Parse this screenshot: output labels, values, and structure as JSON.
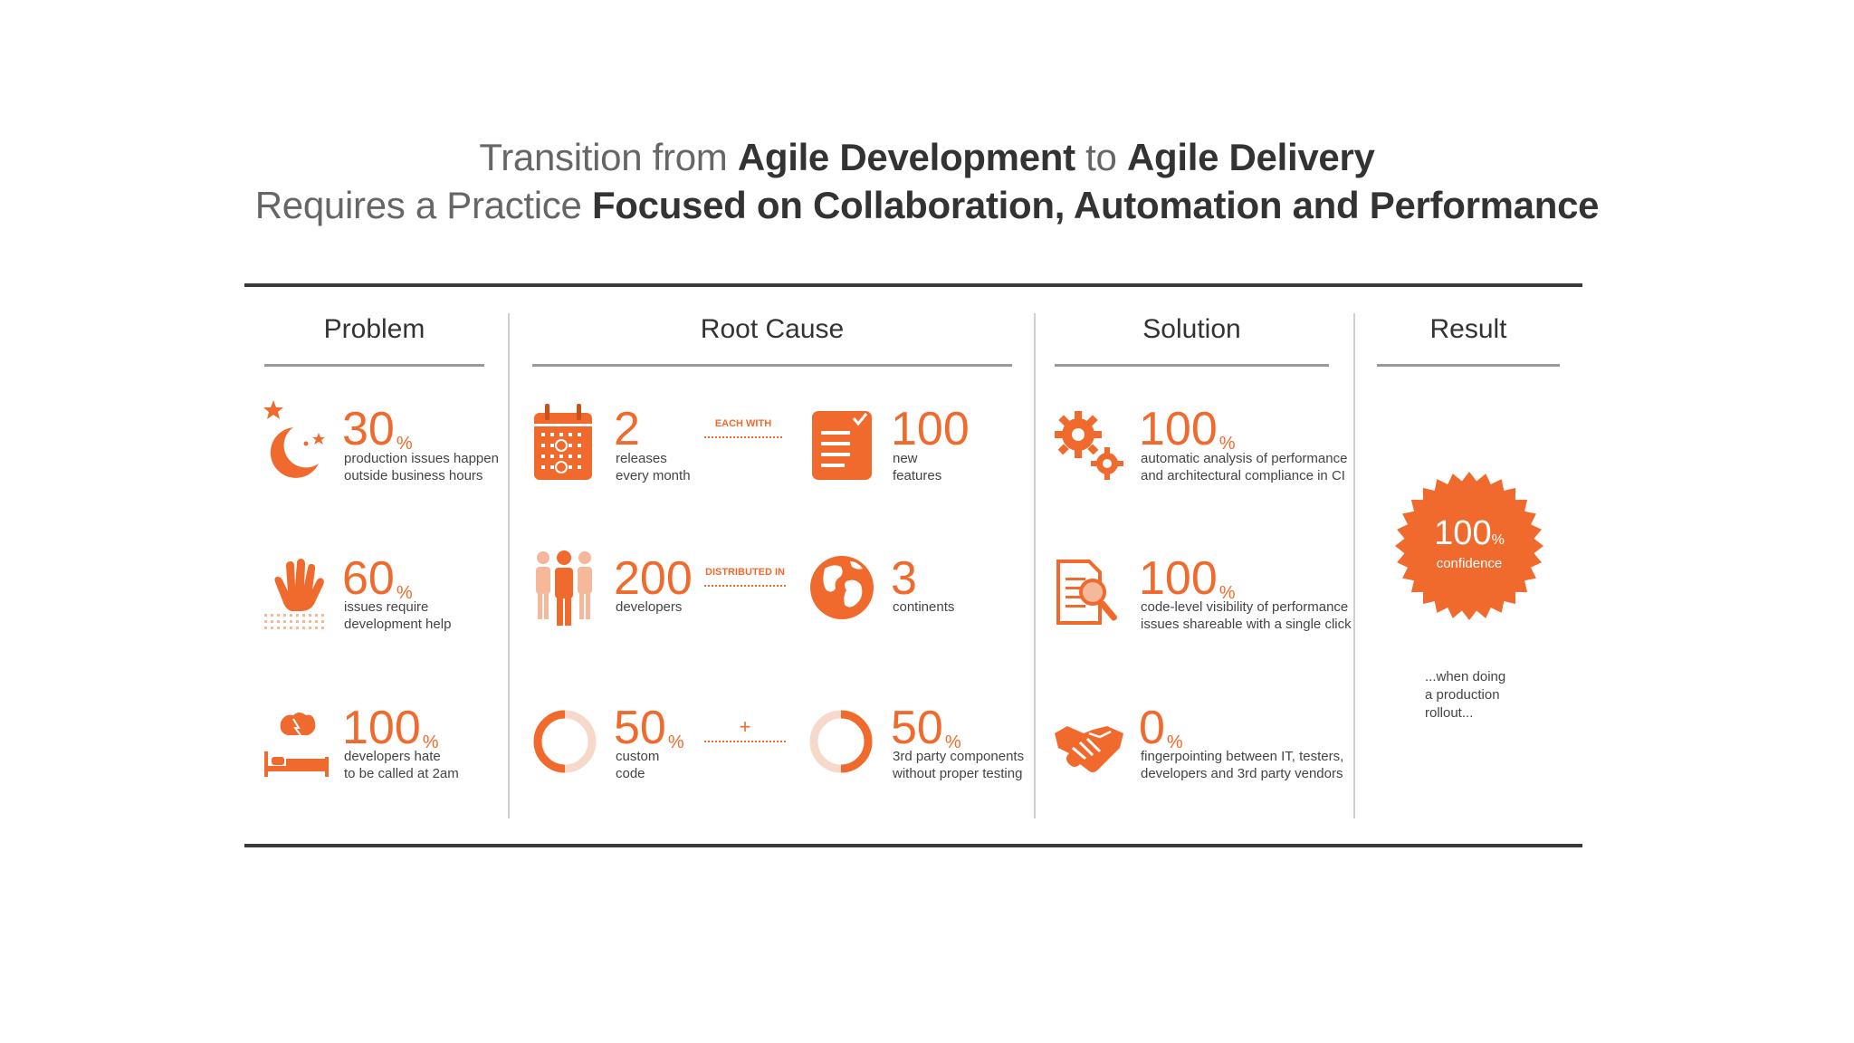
{
  "title": {
    "line1": [
      {
        "t": "Transition from ",
        "b": false
      },
      {
        "t": "Agile Development",
        "b": true
      },
      {
        "t": " to ",
        "b": false
      },
      {
        "t": "Agile Delivery",
        "b": true
      }
    ],
    "line2": [
      {
        "t": "Requires a Practice ",
        "b": false
      },
      {
        "t": "Focused on Collaboration, Automation and Performance",
        "b": true
      }
    ]
  },
  "columns": {
    "problem": "Problem",
    "root_cause": "Root Cause",
    "solution": "Solution",
    "result": "Result"
  },
  "problem": [
    {
      "value": "30",
      "unit": "%",
      "l1": "production issues happen",
      "l2": "outside business hours",
      "icon": "moon-stars-icon"
    },
    {
      "value": "60",
      "unit": "%",
      "l1": "issues require",
      "l2": "development help",
      "icon": "raised-hand-icon"
    },
    {
      "value": "100",
      "unit": "%",
      "l1": "developers hate",
      "l2": "to be called at 2am",
      "icon": "bed-icon"
    }
  ],
  "root_cause": {
    "row1": {
      "left": {
        "value": "2",
        "unit": "",
        "l1": "releases",
        "l2": "every month",
        "icon": "calendar-icon"
      },
      "connector": "EACH WITH",
      "right": {
        "value": "100",
        "unit": "",
        "l1": "new",
        "l2": "features",
        "icon": "checklist-icon"
      }
    },
    "row2": {
      "left": {
        "value": "200",
        "unit": "",
        "l1": "developers",
        "l2": "",
        "icon": "people-icon"
      },
      "connector": "DISTRIBUTED IN",
      "right": {
        "value": "3",
        "unit": "",
        "l1": "continents",
        "l2": "",
        "icon": "globe-icon"
      }
    },
    "row3": {
      "left": {
        "value": "50",
        "unit": "%",
        "l1": "custom",
        "l2": "code",
        "icon": "half-ring-left-icon"
      },
      "connector": "+",
      "right": {
        "value": "50",
        "unit": "%",
        "l1": "3rd party components",
        "l2": "without proper testing",
        "icon": "half-ring-right-icon"
      }
    }
  },
  "solution": [
    {
      "value": "100",
      "unit": "%",
      "l1": "automatic analysis of performance",
      "l2": "and architectural compliance in CI",
      "icon": "gears-icon"
    },
    {
      "value": "100",
      "unit": "%",
      "l1": "code-level visibility of performance",
      "l2": "issues shareable with a single click",
      "icon": "document-magnifier-icon"
    },
    {
      "value": "0",
      "unit": "%",
      "l1": "fingerpointing between IT, testers,",
      "l2": "developers and 3rd party vendors",
      "icon": "handshake-icon"
    }
  ],
  "result": {
    "value": "100",
    "unit": "%",
    "label": "confidence",
    "note": [
      "...when doing",
      "a production",
      "rollout..."
    ]
  },
  "colors": {
    "accent": "#f06a2d",
    "text": "#3a3a3a",
    "rule": "#3a3a3a"
  }
}
